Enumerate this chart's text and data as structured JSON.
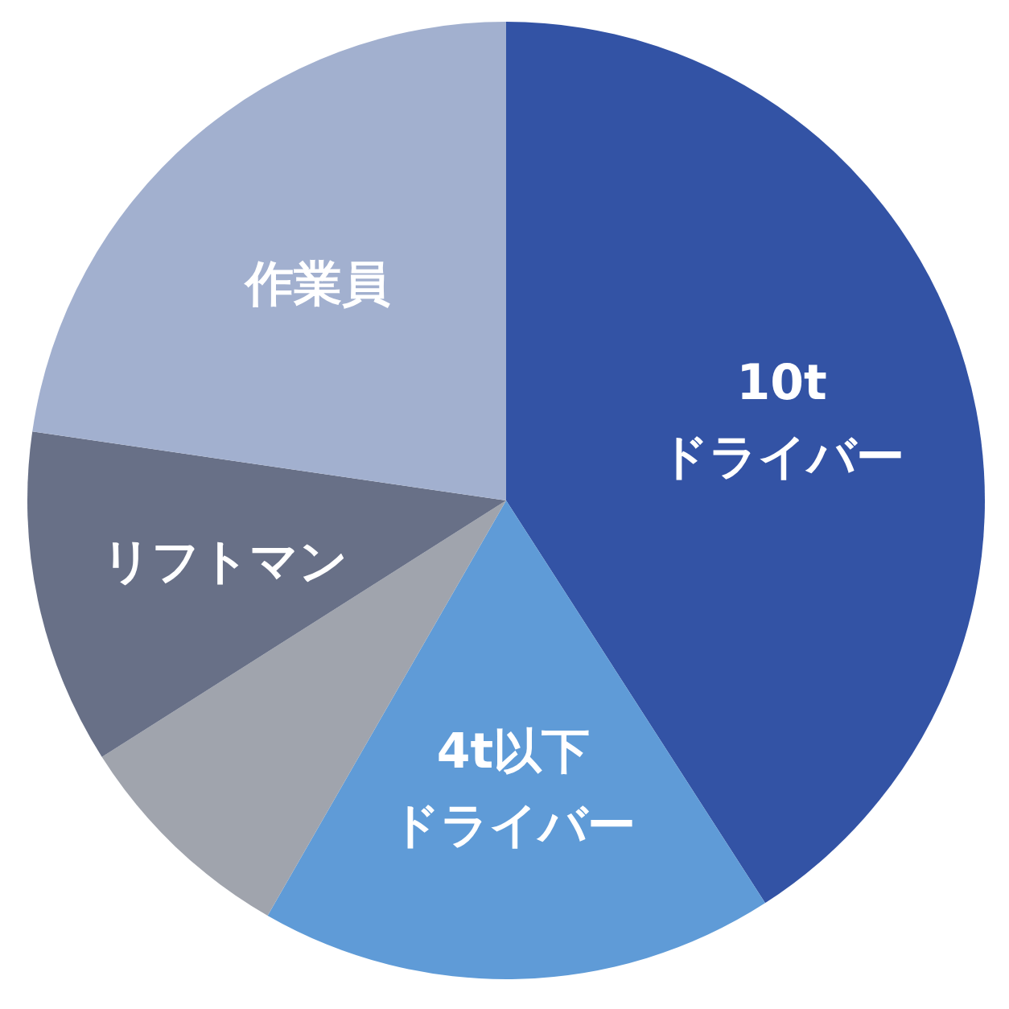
{
  "chart_data": {
    "type": "pie",
    "categories": [
      "10tドライバー",
      "4t以下ドライバー",
      null,
      "リフトマン",
      "作業員"
    ],
    "values": [
      40.9,
      17.4,
      7.7,
      11.3,
      22.7
    ],
    "colors": [
      "#3353a5",
      "#5f9bd7",
      "#a0a4ad",
      "#687087",
      "#a2b0cf"
    ]
  }
}
